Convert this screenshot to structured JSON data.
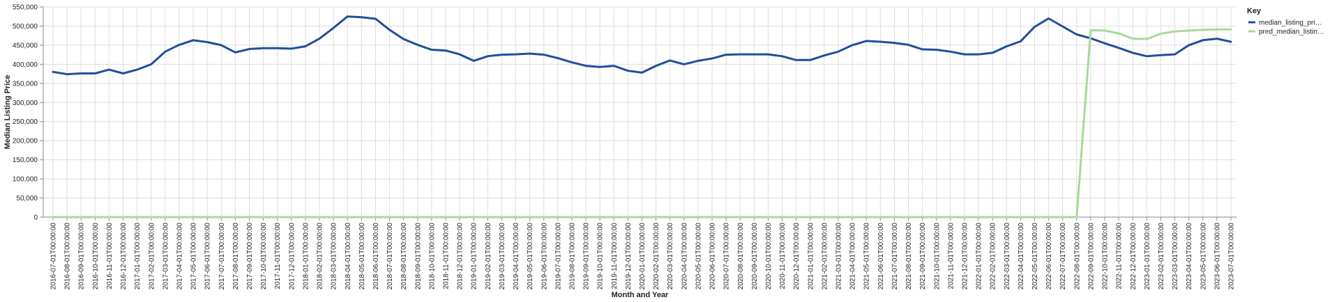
{
  "chart_data": {
    "type": "line",
    "xlabel": "Month and Year",
    "ylabel": "Median Listing Price",
    "ylim": [
      0,
      550000
    ],
    "yticks": [
      0,
      50000,
      100000,
      150000,
      200000,
      250000,
      300000,
      350000,
      400000,
      450000,
      500000,
      550000
    ],
    "ytick_labels": [
      "0",
      "50,000",
      "100,000",
      "150,000",
      "200,000",
      "250,000",
      "300,000",
      "350,000",
      "400,000",
      "450,000",
      "500,000",
      "550,000"
    ],
    "grid": true,
    "legend": {
      "title": "Key",
      "placement": "top-right"
    },
    "x": [
      "2016-07-01T00:00:00",
      "2016-08-01T00:00:00",
      "2016-09-01T00:00:00",
      "2016-10-01T00:00:00",
      "2016-11-01T00:00:00",
      "2016-12-01T00:00:00",
      "2017-01-01T00:00:00",
      "2017-02-01T00:00:00",
      "2017-03-01T00:00:00",
      "2017-04-01T00:00:00",
      "2017-05-01T00:00:00",
      "2017-06-01T00:00:00",
      "2017-07-01T00:00:00",
      "2017-08-01T00:00:00",
      "2017-09-01T00:00:00",
      "2017-10-01T00:00:00",
      "2017-11-01T00:00:00",
      "2017-12-01T00:00:00",
      "2018-01-01T00:00:00",
      "2018-02-01T00:00:00",
      "2018-03-01T00:00:00",
      "2018-04-01T00:00:00",
      "2018-05-01T00:00:00",
      "2018-06-01T00:00:00",
      "2018-07-01T00:00:00",
      "2018-08-01T00:00:00",
      "2018-09-01T00:00:00",
      "2018-10-01T00:00:00",
      "2018-11-01T00:00:00",
      "2018-12-01T00:00:00",
      "2019-01-01T00:00:00",
      "2019-02-01T00:00:00",
      "2019-03-01T00:00:00",
      "2019-04-01T00:00:00",
      "2019-05-01T00:00:00",
      "2019-06-01T00:00:00",
      "2019-07-01T00:00:00",
      "2019-08-01T00:00:00",
      "2019-09-01T00:00:00",
      "2019-10-01T00:00:00",
      "2019-11-01T00:00:00",
      "2019-12-01T00:00:00",
      "2020-01-01T00:00:00",
      "2020-02-01T00:00:00",
      "2020-03-01T00:00:00",
      "2020-04-01T00:00:00",
      "2020-05-01T00:00:00",
      "2020-06-01T00:00:00",
      "2020-07-01T00:00:00",
      "2020-08-01T00:00:00",
      "2020-09-01T00:00:00",
      "2020-10-01T00:00:00",
      "2020-11-01T00:00:00",
      "2020-12-01T00:00:00",
      "2021-01-01T00:00:00",
      "2021-02-01T00:00:00",
      "2021-03-01T00:00:00",
      "2021-04-01T00:00:00",
      "2021-05-01T00:00:00",
      "2021-06-01T00:00:00",
      "2021-07-01T00:00:00",
      "2021-08-01T00:00:00",
      "2021-09-01T00:00:00",
      "2021-10-01T00:00:00",
      "2021-11-01T00:00:00",
      "2021-12-01T00:00:00",
      "2022-01-01T00:00:00",
      "2022-02-01T00:00:00",
      "2022-03-01T00:00:00",
      "2022-04-01T00:00:00",
      "2022-05-01T00:00:00",
      "2022-06-01T00:00:00",
      "2022-07-01T00:00:00",
      "2022-08-01T00:00:00",
      "2022-09-01T00:00:00",
      "2022-10-01T00:00:00",
      "2022-11-01T00:00:00",
      "2022-12-01T00:00:00",
      "2023-01-01T00:00:00",
      "2023-02-01T00:00:00",
      "2023-03-01T00:00:00",
      "2023-04-01T00:00:00",
      "2023-05-01T00:00:00",
      "2023-06-01T00:00:00",
      "2023-07-01T00:00:00"
    ],
    "series": [
      {
        "name": "median_listing_pri…",
        "color": "#1f4e9c",
        "values": [
          380000,
          374000,
          376000,
          376000,
          386000,
          376000,
          386000,
          400000,
          433000,
          451000,
          463000,
          458000,
          450000,
          431000,
          440000,
          442000,
          442000,
          441000,
          447000,
          467000,
          495000,
          525000,
          523000,
          519000,
          490000,
          466000,
          451000,
          438000,
          436000,
          426000,
          409000,
          421000,
          425000,
          426000,
          428000,
          425000,
          416000,
          405000,
          396000,
          393000,
          396000,
          383000,
          378000,
          396000,
          410000,
          400000,
          409000,
          415000,
          425000,
          426000,
          426000,
          426000,
          421000,
          411000,
          411000,
          423000,
          433000,
          450000,
          461000,
          459000,
          456000,
          451000,
          439000,
          438000,
          433000,
          426000,
          426000,
          430000,
          447000,
          460000,
          498000,
          520000,
          499000,
          478000,
          468000,
          455000,
          443000,
          430000,
          421000,
          424000,
          426000,
          450000,
          463000,
          467000,
          459000
        ]
      },
      {
        "name": "pred_median_listin…",
        "color": "#a6d99b",
        "values": [
          0,
          0,
          0,
          0,
          0,
          0,
          0,
          0,
          0,
          0,
          0,
          0,
          0,
          0,
          0,
          0,
          0,
          0,
          0,
          0,
          0,
          0,
          0,
          0,
          0,
          0,
          0,
          0,
          0,
          0,
          0,
          0,
          0,
          0,
          0,
          0,
          0,
          0,
          0,
          0,
          0,
          0,
          0,
          0,
          0,
          0,
          0,
          0,
          0,
          0,
          0,
          0,
          0,
          0,
          0,
          0,
          0,
          0,
          0,
          0,
          0,
          0,
          0,
          0,
          0,
          0,
          0,
          0,
          0,
          0,
          0,
          0,
          0,
          0,
          489000,
          488000,
          481000,
          467000,
          466000,
          480000,
          486000,
          488000,
          490000,
          491000,
          491000
        ]
      }
    ]
  }
}
